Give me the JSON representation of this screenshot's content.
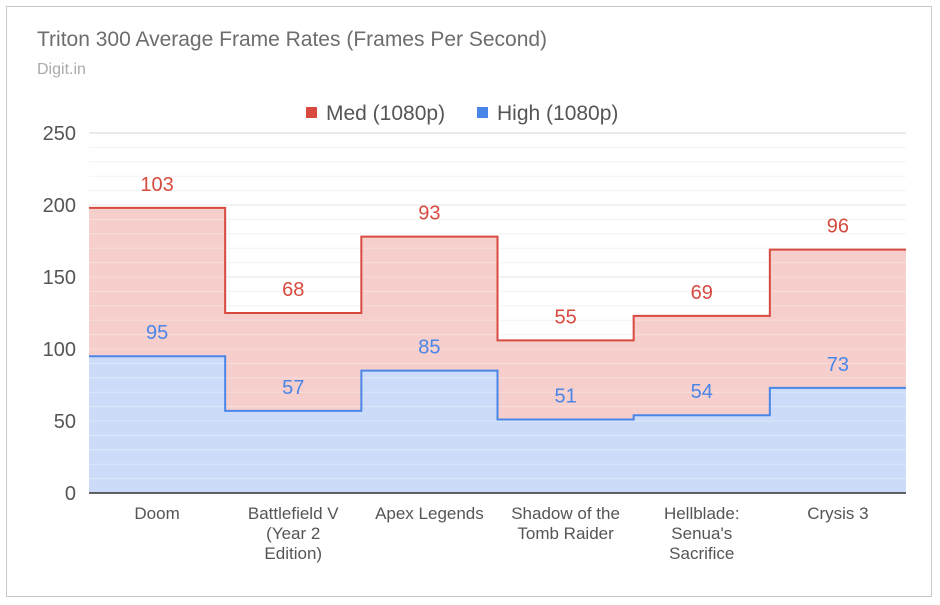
{
  "chart_data": {
    "type": "area",
    "subtype": "stacked-stepped",
    "title": "Triton 300 Average Frame Rates (Frames Per Second)",
    "subtitle": "Digit.in",
    "categories": [
      [
        "Doom"
      ],
      [
        "Battlefield V",
        "(Year 2",
        "Edition)"
      ],
      [
        "Apex Legends"
      ],
      [
        "Shadow of the",
        "Tomb Raider"
      ],
      [
        "Hellblade:",
        "Senua's",
        "Sacrifice"
      ],
      [
        "Crysis 3"
      ]
    ],
    "series": [
      {
        "name": "High (1080p)",
        "values": [
          95,
          57,
          85,
          51,
          54,
          73
        ],
        "color": "#4a86e8",
        "fill": "#c9daf8"
      },
      {
        "name": "Med (1080p)",
        "values": [
          103,
          68,
          93,
          55,
          69,
          96
        ],
        "color": "#d84a3f",
        "fill": "#f4c7c3"
      }
    ],
    "legend_order": [
      "Med (1080p)",
      "High (1080p)"
    ],
    "legend_position": "top",
    "ylim": [
      0,
      250
    ],
    "yticks": [
      0,
      50,
      100,
      150,
      200,
      250
    ],
    "grid": true
  }
}
